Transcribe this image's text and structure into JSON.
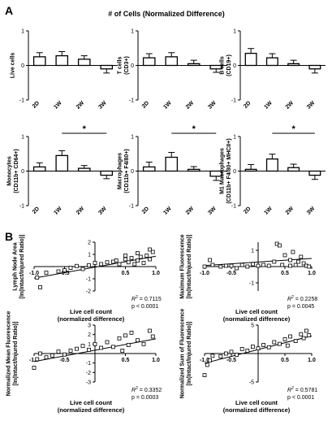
{
  "figure": {
    "panel_a_letter": "A",
    "panel_b_letter": "B",
    "panel_a_title": "# of Cells (Normalized Difference)"
  },
  "chart_data": [
    {
      "type": "bar",
      "panel": "A",
      "ylabel": "Live cells",
      "categories": [
        "2D",
        "1W",
        "2W",
        "3W"
      ],
      "values": [
        0.25,
        0.28,
        0.18,
        -0.1
      ],
      "errors": [
        0.12,
        0.12,
        0.1,
        0.12
      ],
      "ylim": [
        -1,
        1
      ],
      "yticks": [
        "-1",
        "0",
        "1"
      ],
      "significance": null
    },
    {
      "type": "bar",
      "panel": "A",
      "ylabel": "T cells\n(CD3+)",
      "categories": [
        "2D",
        "1W",
        "2W",
        "3W"
      ],
      "values": [
        0.22,
        0.25,
        0.05,
        -0.1
      ],
      "errors": [
        0.12,
        0.12,
        0.1,
        0.1
      ],
      "ylim": [
        -1,
        1
      ],
      "yticks": [
        "-1",
        "0",
        "1"
      ],
      "significance": null
    },
    {
      "type": "bar",
      "panel": "A",
      "ylabel": "B cells\n(CD19+)",
      "categories": [
        "2D",
        "1W",
        "2W",
        "3W"
      ],
      "values": [
        0.35,
        0.22,
        0.05,
        -0.1
      ],
      "errors": [
        0.14,
        0.12,
        0.1,
        0.12
      ],
      "ylim": [
        -1,
        1
      ],
      "yticks": [
        "-1",
        "0",
        "1"
      ],
      "significance": null
    },
    {
      "type": "bar",
      "panel": "A",
      "ylabel": "Monocytes\n(CD11b+ CD64+)",
      "categories": [
        "2D",
        "1W",
        "2W",
        "3W"
      ],
      "values": [
        0.12,
        0.45,
        0.08,
        -0.12
      ],
      "errors": [
        0.12,
        0.14,
        0.08,
        0.1
      ],
      "ylim": [
        -1,
        1
      ],
      "yticks": [
        "-1",
        "0",
        "1"
      ],
      "significance": {
        "from": "1W",
        "to": "3W",
        "label": "*"
      }
    },
    {
      "type": "bar",
      "panel": "A",
      "ylabel": "Macrophages\n(CD11b+ F4/80+)",
      "categories": [
        "2D",
        "1W",
        "2W",
        "3W"
      ],
      "values": [
        0.12,
        0.4,
        0.05,
        -0.15
      ],
      "errors": [
        0.14,
        0.14,
        0.08,
        0.12
      ],
      "ylim": [
        -1,
        1
      ],
      "yticks": [
        "-1",
        "0",
        "1"
      ],
      "significance": {
        "from": "1W",
        "to": "3W",
        "label": "*"
      }
    },
    {
      "type": "bar",
      "panel": "A",
      "ylabel": "M1 Macrophages\n(CD11b+ F4/80+ MHCII+)",
      "categories": [
        "2D",
        "1W",
        "2W",
        "3W"
      ],
      "values": [
        0.05,
        0.35,
        0.1,
        -0.12
      ],
      "errors": [
        0.14,
        0.14,
        0.1,
        0.12
      ],
      "ylim": [
        -1,
        1
      ],
      "yticks": [
        "-1",
        "0",
        "1"
      ],
      "significance": {
        "from": "1W",
        "to": "3W",
        "label": "*"
      }
    },
    {
      "type": "scatter",
      "panel": "B",
      "ylabel": "Lymph Node Area\n[In(Intact/Injured Ratio)]",
      "xlabel": "Live cell count\n(normalized difference)",
      "xlim": [
        -1,
        1
      ],
      "ylim": [
        -2,
        2
      ],
      "xticks": [
        "-1.0",
        "-0.5",
        "0.5",
        "1.0"
      ],
      "yticks": [
        "-2",
        "-1",
        "1",
        "2"
      ],
      "points": [
        [
          -0.95,
          -0.9
        ],
        [
          -0.9,
          -1.7
        ],
        [
          -0.8,
          -0.5
        ],
        [
          -0.6,
          -0.4
        ],
        [
          -0.5,
          -0.3
        ],
        [
          -0.4,
          -0.1
        ],
        [
          -0.3,
          0.05
        ],
        [
          -0.2,
          -0.2
        ],
        [
          -0.1,
          0.1
        ],
        [
          0.0,
          0.3
        ],
        [
          0.1,
          0.2
        ],
        [
          0.2,
          0.35
        ],
        [
          0.3,
          0.4
        ],
        [
          0.35,
          0.5
        ],
        [
          0.4,
          0.2
        ],
        [
          0.5,
          0.6
        ],
        [
          0.55,
          0.35
        ],
        [
          0.6,
          0.7
        ],
        [
          0.65,
          0.2
        ],
        [
          0.7,
          0.5
        ],
        [
          0.75,
          0.8
        ],
        [
          0.8,
          0.3
        ],
        [
          0.85,
          0.9
        ],
        [
          0.9,
          0.6
        ],
        [
          0.95,
          1.2
        ],
        [
          0.9,
          1.4
        ],
        [
          0.7,
          1.1
        ],
        [
          0.5,
          0.9
        ]
      ],
      "fit": {
        "slope": 0.9,
        "intercept": -0.05
      },
      "r2": "0.7115",
      "p": "p < 0.0001"
    },
    {
      "type": "scatter",
      "panel": "B",
      "ylabel": "Maximum Fluorescence\n[In(Intact/Injured Ratio)]",
      "xlabel": "Live cell count\n(normalized difference)",
      "xlim": [
        -1,
        1
      ],
      "ylim": [
        -1.5,
        1.5
      ],
      "xticks": [
        "-1.0",
        "-0.5",
        "0.5",
        "1.0"
      ],
      "yticks": [
        "-1",
        "1"
      ],
      "points": [
        [
          -1.0,
          0.0
        ],
        [
          -0.9,
          0.4
        ],
        [
          -0.85,
          0.1
        ],
        [
          -0.7,
          0.0
        ],
        [
          -0.6,
          0.05
        ],
        [
          -0.5,
          0.05
        ],
        [
          -0.4,
          -0.1
        ],
        [
          -0.3,
          0.1
        ],
        [
          -0.2,
          0.0
        ],
        [
          -0.1,
          0.15
        ],
        [
          0.0,
          0.05
        ],
        [
          0.1,
          0.1
        ],
        [
          0.2,
          0.05
        ],
        [
          0.3,
          0.3
        ],
        [
          0.35,
          1.4
        ],
        [
          0.4,
          1.3
        ],
        [
          0.45,
          0.1
        ],
        [
          0.5,
          0.7
        ],
        [
          0.6,
          0.4
        ],
        [
          0.65,
          0.9
        ],
        [
          0.7,
          0.1
        ],
        [
          0.75,
          0.3
        ],
        [
          0.8,
          0.6
        ],
        [
          0.85,
          0.2
        ],
        [
          0.9,
          0.05
        ],
        [
          0.95,
          0.0
        ],
        [
          0.6,
          0.05
        ]
      ],
      "fit": {
        "slope": 0.22,
        "intercept": 0.28
      },
      "r2": "0.2258",
      "p": "p = 0.0045"
    },
    {
      "type": "scatter",
      "panel": "B",
      "ylabel": "Normalized Mean Fluorescence\n[In(Intact/Injured Ratio)]",
      "xlabel": "Live cell count\n(normalized difference)",
      "xlim": [
        -1,
        1
      ],
      "ylim": [
        -3,
        3
      ],
      "xticks": [
        "-1.0",
        "-0.5",
        "0.5",
        "1.0"
      ],
      "yticks": [
        "-3",
        "-2",
        "-1",
        "1",
        "2",
        "3"
      ],
      "points": [
        [
          -1.0,
          -1.5
        ],
        [
          -0.95,
          -0.6
        ],
        [
          -0.9,
          0.0
        ],
        [
          -0.8,
          -0.4
        ],
        [
          -0.7,
          -0.2
        ],
        [
          -0.6,
          0.2
        ],
        [
          -0.5,
          -0.1
        ],
        [
          -0.4,
          0.3
        ],
        [
          -0.3,
          0.5
        ],
        [
          -0.2,
          0.8
        ],
        [
          -0.1,
          0.4
        ],
        [
          0.0,
          1.0
        ],
        [
          0.1,
          0.6
        ],
        [
          0.2,
          1.2
        ],
        [
          0.3,
          0.7
        ],
        [
          0.4,
          1.6
        ],
        [
          0.45,
          0.3
        ],
        [
          0.5,
          1.9
        ],
        [
          0.55,
          0.9
        ],
        [
          0.6,
          2.2
        ],
        [
          0.7,
          1.4
        ],
        [
          0.8,
          1.0
        ],
        [
          0.9,
          2.4
        ],
        [
          0.95,
          1.8
        ]
      ],
      "fit": {
        "slope": 1.2,
        "intercept": 0.35
      },
      "r2": "0.3352",
      "p": "p = 0.0003"
    },
    {
      "type": "scatter",
      "panel": "B",
      "ylabel": "Normalized Sum of Fluorescence\n[In(Intact/Injured Ratio)]",
      "xlabel": "Live cell count\n(normalized difference)",
      "xlim": [
        -1,
        1
      ],
      "ylim": [
        -5,
        5
      ],
      "xticks": [
        "-1.0",
        "-0.5",
        "0.5",
        "1.0"
      ],
      "yticks": [
        "-5",
        "5"
      ],
      "points": [
        [
          -1.0,
          -3.8
        ],
        [
          -0.95,
          -2.0
        ],
        [
          -0.9,
          -1.2
        ],
        [
          -0.85,
          -0.4
        ],
        [
          -0.7,
          -0.5
        ],
        [
          -0.6,
          0.0
        ],
        [
          -0.5,
          0.3
        ],
        [
          -0.4,
          -0.2
        ],
        [
          -0.3,
          0.8
        ],
        [
          -0.2,
          0.5
        ],
        [
          -0.1,
          1.2
        ],
        [
          0.0,
          0.9
        ],
        [
          0.1,
          1.5
        ],
        [
          0.2,
          1.1
        ],
        [
          0.3,
          2.0
        ],
        [
          0.4,
          1.7
        ],
        [
          0.5,
          2.5
        ],
        [
          0.55,
          1.4
        ],
        [
          0.6,
          3.0
        ],
        [
          0.7,
          2.2
        ],
        [
          0.8,
          3.4
        ],
        [
          0.85,
          2.7
        ],
        [
          0.9,
          4.0
        ],
        [
          0.95,
          3.2
        ]
      ],
      "fit": {
        "slope": 2.4,
        "intercept": 0.7
      },
      "r2": "0.5781",
      "p": "p < 0.0001"
    }
  ]
}
